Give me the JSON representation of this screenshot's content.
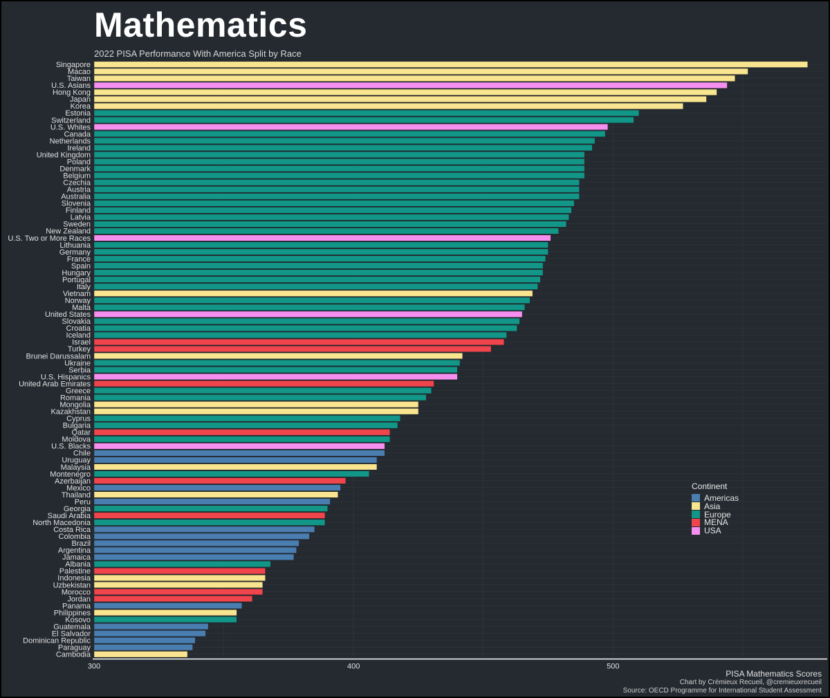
{
  "page": {
    "title": "Mathematics",
    "subtitle": "2022 PISA Performance With America Split by Race"
  },
  "colors": {
    "Americas": "#4a7db0",
    "Asia": "#f9e58f",
    "Europe": "#129688",
    "MENA": "#f0454d",
    "USA": "#f68ff0",
    "background": "#252a30",
    "text": "#e0e0e0"
  },
  "legend": {
    "title": "Continent",
    "items": [
      "Americas",
      "Asia",
      "Europe",
      "MENA",
      "USA"
    ]
  },
  "caption": {
    "title": "PISA Mathematics Scores",
    "credit": "Chart by Crémieux Recueil, @cremieuxrecueil",
    "source": "Source: OECD Programme for International Student Assessment"
  },
  "chart_data": {
    "type": "bar",
    "orientation": "horizontal",
    "title": "Mathematics",
    "subtitle": "2022 PISA Performance With America Split by Race",
    "xlabel": "",
    "ylabel": "",
    "xlim": [
      300,
      582
    ],
    "xticks": [
      300,
      400,
      500
    ],
    "grid": true,
    "legend_position": "right",
    "categories": [
      "Singapore",
      "Macao",
      "Taiwan",
      "U.S. Asians",
      "Hong Kong",
      "Japan",
      "Korea",
      "Estonia",
      "Switzerland",
      "U.S. Whites",
      "Canada",
      "Netherlands",
      "Ireland",
      "United Kingdom",
      "Poland",
      "Denmark",
      "Belgium",
      "Czechia",
      "Austria",
      "Australia",
      "Slovenia",
      "Finland",
      "Latvia",
      "Sweden",
      "New Zealand",
      "U.S. Two or More Races",
      "Lithuania",
      "Germany",
      "France",
      "Spain",
      "Hungary",
      "Portugal",
      "Italy",
      "Vietnam",
      "Norway",
      "Malta",
      "United States",
      "Slovakia",
      "Croatia",
      "Iceland",
      "Israel",
      "Turkey",
      "Brunei Darussalam",
      "Ukraine",
      "Serbia",
      "U.S. Hispanics",
      "United Arab Emirates",
      "Greece",
      "Romania",
      "Mongolia",
      "Kazakhstan",
      "Cyprus",
      "Bulgaria",
      "Qatar",
      "Moldova",
      "U.S. Blacks",
      "Chile",
      "Uruguay",
      "Malaysia",
      "Montenegro",
      "Azerbaijan",
      "Mexico",
      "Thailand",
      "Peru",
      "Georgia",
      "Saudi Arabia",
      "North Macedonia",
      "Costa Rica",
      "Colombia",
      "Brazil",
      "Argentina",
      "Jamaica",
      "Albania",
      "Palestine",
      "Indonesia",
      "Uzbekistan",
      "Morocco",
      "Jordan",
      "Panama",
      "Philippines",
      "Kosovo",
      "Guatemala",
      "El Salvador",
      "Dominican Republic",
      "Paraguay",
      "Cambodia"
    ],
    "values": [
      575,
      552,
      547,
      544,
      540,
      536,
      527,
      510,
      508,
      498,
      497,
      493,
      492,
      489,
      489,
      489,
      489,
      487,
      487,
      487,
      485,
      484,
      483,
      482,
      479,
      476,
      475,
      475,
      474,
      473,
      473,
      472,
      471,
      469,
      468,
      466,
      465,
      464,
      463,
      459,
      458,
      453,
      442,
      441,
      440,
      440,
      431,
      430,
      428,
      425,
      425,
      418,
      417,
      414,
      414,
      412,
      412,
      409,
      409,
      406,
      397,
      395,
      394,
      391,
      390,
      389,
      389,
      385,
      383,
      379,
      378,
      377,
      368,
      366,
      366,
      365,
      365,
      361,
      357,
      355,
      355,
      344,
      343,
      339,
      338,
      336
    ],
    "groups": [
      "Asia",
      "Asia",
      "Asia",
      "USA",
      "Asia",
      "Asia",
      "Asia",
      "Europe",
      "Europe",
      "USA",
      "Europe",
      "Europe",
      "Europe",
      "Europe",
      "Europe",
      "Europe",
      "Europe",
      "Europe",
      "Europe",
      "Europe",
      "Europe",
      "Europe",
      "Europe",
      "Europe",
      "Europe",
      "USA",
      "Europe",
      "Europe",
      "Europe",
      "Europe",
      "Europe",
      "Europe",
      "Europe",
      "Asia",
      "Europe",
      "Europe",
      "USA",
      "Europe",
      "Europe",
      "Europe",
      "MENA",
      "MENA",
      "Asia",
      "Europe",
      "Europe",
      "USA",
      "MENA",
      "Europe",
      "Europe",
      "Asia",
      "Asia",
      "Europe",
      "Europe",
      "MENA",
      "Europe",
      "USA",
      "Americas",
      "Americas",
      "Asia",
      "Europe",
      "MENA",
      "Americas",
      "Asia",
      "Americas",
      "Europe",
      "MENA",
      "Europe",
      "Americas",
      "Americas",
      "Americas",
      "Americas",
      "Americas",
      "Europe",
      "MENA",
      "Asia",
      "Asia",
      "MENA",
      "MENA",
      "Americas",
      "Asia",
      "Europe",
      "Americas",
      "Americas",
      "Americas",
      "Americas",
      "Asia"
    ]
  }
}
